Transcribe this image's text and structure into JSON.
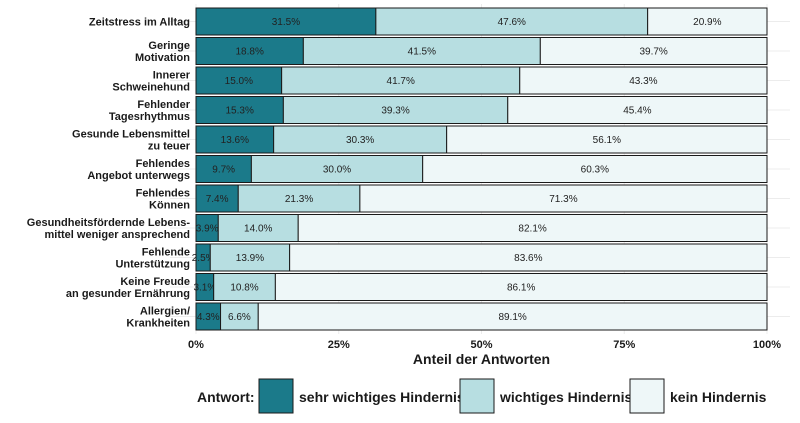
{
  "chart_data": {
    "type": "bar",
    "orientation": "horizontal",
    "stacked": true,
    "categories": [
      [
        "Zeitstress im Alltag"
      ],
      [
        "Geringe",
        "Motivation"
      ],
      [
        "Innerer",
        "Schweinehund"
      ],
      [
        "Fehlender",
        "Tagesrhythmus"
      ],
      [
        "Gesunde Lebensmittel",
        "zu teuer"
      ],
      [
        "Fehlendes",
        "Angebot unterwegs"
      ],
      [
        "Fehlendes",
        "Können"
      ],
      [
        "Gesundheitsfördernde Lebens-",
        "mittel weniger ansprechend"
      ],
      [
        "Fehlende",
        "Unterstützung"
      ],
      [
        "Keine Freude",
        "an gesunder Ernährung"
      ],
      [
        "Allergien/",
        "Krankheiten"
      ]
    ],
    "series": [
      {
        "name": "sehr wichtiges Hindernis",
        "color": "#1b7a8a",
        "values": [
          31.5,
          18.8,
          15.0,
          15.3,
          13.6,
          9.7,
          7.4,
          3.9,
          2.5,
          3.1,
          4.3
        ],
        "labels": [
          "31.5%",
          "18.8%",
          "15.0%",
          "15.3%",
          "13.6%",
          "9.7%",
          "7.4%",
          "3.9%",
          "2.5%",
          "3.1%",
          "4.3%"
        ]
      },
      {
        "name": "wichtiges Hindernis",
        "color": "#b7dee1",
        "values": [
          47.6,
          41.5,
          41.7,
          39.3,
          30.3,
          30.0,
          21.3,
          14.0,
          13.9,
          10.8,
          6.6
        ],
        "labels": [
          "47.6%",
          "41.5%",
          "41.7%",
          "39.3%",
          "30.3%",
          "30.0%",
          "21.3%",
          "14.0%",
          "13.9%",
          "10.8%",
          "6.6%"
        ]
      },
      {
        "name": "kein Hindernis",
        "color": "#eef7f8",
        "values": [
          20.9,
          39.7,
          43.3,
          45.4,
          56.1,
          60.3,
          71.3,
          82.1,
          83.6,
          86.1,
          89.1
        ],
        "labels": [
          "20.9%",
          "39.7%",
          "43.3%",
          "45.4%",
          "56.1%",
          "60.3%",
          "71.3%",
          "82.1%",
          "83.6%",
          "86.1%",
          "89.1%"
        ]
      }
    ],
    "xticks": [
      0,
      25,
      50,
      75,
      100
    ],
    "xtick_labels": [
      "0%",
      "25%",
      "50%",
      "75%",
      "100%"
    ],
    "xlim": [
      0,
      100
    ],
    "xlabel": "Anteil der Antworten",
    "ylabel": "",
    "legend": {
      "title": "Antwort:",
      "position": "bottom"
    },
    "grid": true
  }
}
